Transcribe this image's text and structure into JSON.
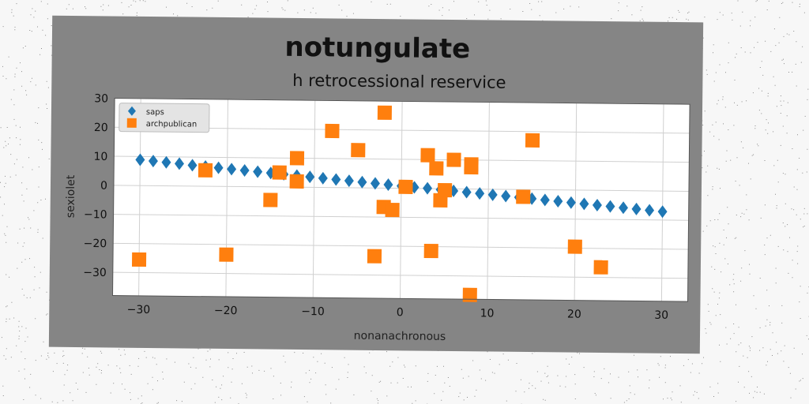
{
  "chart_data": {
    "type": "scatter",
    "title": "notungulate",
    "subtitle": "h retrocessional reservice",
    "xlabel": "nonanachronous",
    "ylabel": "sexiolet",
    "xlim": [
      -33,
      33
    ],
    "ylim": [
      -38,
      30
    ],
    "xticks": [
      -30,
      -20,
      -10,
      0,
      10,
      20,
      30
    ],
    "yticks": [
      -30,
      -20,
      -10,
      0,
      10,
      20,
      30
    ],
    "grid": true,
    "legend_position": "top-left",
    "series": [
      {
        "name": "saps",
        "marker": "diamond",
        "color": "#1f77b4",
        "x": [
          -30,
          -28.5,
          -27,
          -25.5,
          -24,
          -22.5,
          -21,
          -19.5,
          -18,
          -16.5,
          -15,
          -13.5,
          -12,
          -10.5,
          -9,
          -7.5,
          -6,
          -4.5,
          -3,
          -1.5,
          0,
          1.5,
          3,
          4.5,
          6,
          7.5,
          9,
          10.5,
          12,
          13.5,
          15,
          16.5,
          18,
          19.5,
          21,
          22.5,
          24,
          25.5,
          27,
          28.5,
          30
        ],
        "y": [
          8.9,
          8.5,
          8.1,
          7.7,
          7.2,
          6.8,
          6.4,
          6.0,
          5.6,
          5.2,
          4.8,
          4.4,
          4.0,
          3.6,
          3.2,
          2.8,
          2.4,
          2.0,
          1.6,
          1.2,
          0.8,
          0.4,
          0.1,
          -0.3,
          -0.7,
          -1.1,
          -1.5,
          -1.9,
          -2.3,
          -2.7,
          -3.1,
          -3.5,
          -3.9,
          -4.3,
          -4.7,
          -5.1,
          -5.5,
          -5.9,
          -6.3,
          -6.7,
          -7.1
        ]
      },
      {
        "name": "archpublican",
        "marker": "square",
        "color": "#ff7f0e",
        "x": [
          -30,
          -22.5,
          -20,
          -15,
          -14,
          -12,
          -12,
          -8,
          -5,
          -3,
          -2,
          -2,
          -1,
          0.5,
          3,
          3.5,
          4,
          4.5,
          5,
          6,
          8,
          8,
          8,
          14,
          15,
          20,
          23
        ],
        "y": [
          -25.5,
          5.5,
          -23.5,
          -4.5,
          5,
          10,
          2,
          19.5,
          13,
          -23.5,
          26,
          -6.5,
          -7.5,
          0.5,
          11.5,
          -21.5,
          7,
          -4,
          -0.5,
          10,
          8.5,
          7.5,
          -36.5,
          -2.5,
          17,
          -19.5,
          -26.5
        ]
      }
    ]
  }
}
